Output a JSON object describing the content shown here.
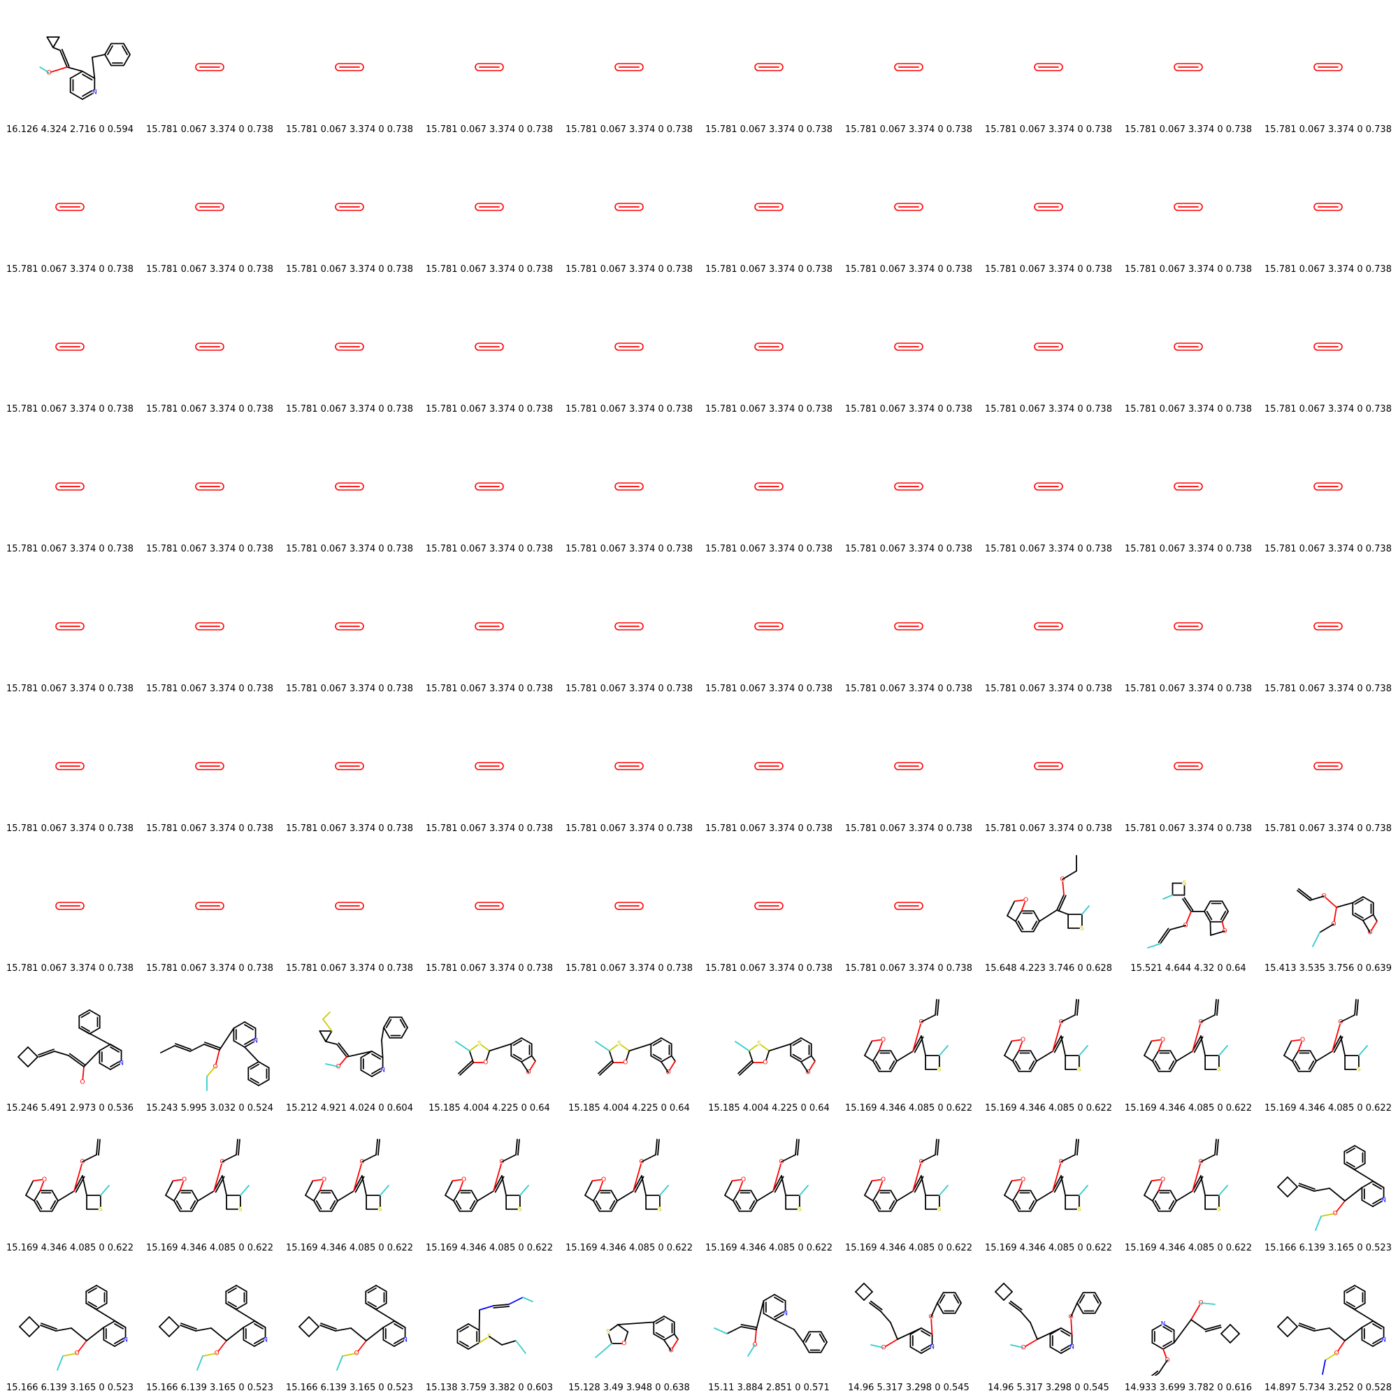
{
  "colors": {
    "bond": "#000000",
    "oxygen": "#ff0000",
    "nitrogen": "#0000ff",
    "sulfur": "#cccc00",
    "fluorine": "#33cccc"
  },
  "cells": [
    {
      "label": "16.126 4.324 2.716 0 0.594",
      "structure": "cyclopropyl-vinyl-pyridine"
    },
    {
      "label": "15.781 0.067 3.374 0 0.738",
      "structure": "o2"
    },
    {
      "label": "15.781 0.067 3.374 0 0.738",
      "structure": "o2"
    },
    {
      "label": "15.781 0.067 3.374 0 0.738",
      "structure": "o2"
    },
    {
      "label": "15.781 0.067 3.374 0 0.738",
      "structure": "o2"
    },
    {
      "label": "15.781 0.067 3.374 0 0.738",
      "structure": "o2"
    },
    {
      "label": "15.781 0.067 3.374 0 0.738",
      "structure": "o2"
    },
    {
      "label": "15.781 0.067 3.374 0 0.738",
      "structure": "o2"
    },
    {
      "label": "15.781 0.067 3.374 0 0.738",
      "structure": "o2"
    },
    {
      "label": "15.781 0.067 3.374 0 0.738",
      "structure": "o2"
    },
    {
      "label": "15.781 0.067 3.374 0 0.738",
      "structure": "o2"
    },
    {
      "label": "15.781 0.067 3.374 0 0.738",
      "structure": "o2"
    },
    {
      "label": "15.781 0.067 3.374 0 0.738",
      "structure": "o2"
    },
    {
      "label": "15.781 0.067 3.374 0 0.738",
      "structure": "o2"
    },
    {
      "label": "15.781 0.067 3.374 0 0.738",
      "structure": "o2"
    },
    {
      "label": "15.781 0.067 3.374 0 0.738",
      "structure": "o2"
    },
    {
      "label": "15.781 0.067 3.374 0 0.738",
      "structure": "o2"
    },
    {
      "label": "15.781 0.067 3.374 0 0.738",
      "structure": "o2"
    },
    {
      "label": "15.781 0.067 3.374 0 0.738",
      "structure": "o2"
    },
    {
      "label": "15.781 0.067 3.374 0 0.738",
      "structure": "o2"
    },
    {
      "label": "15.781 0.067 3.374 0 0.738",
      "structure": "o2"
    },
    {
      "label": "15.781 0.067 3.374 0 0.738",
      "structure": "o2"
    },
    {
      "label": "15.781 0.067 3.374 0 0.738",
      "structure": "o2"
    },
    {
      "label": "15.781 0.067 3.374 0 0.738",
      "structure": "o2"
    },
    {
      "label": "15.781 0.067 3.374 0 0.738",
      "structure": "o2"
    },
    {
      "label": "15.781 0.067 3.374 0 0.738",
      "structure": "o2"
    },
    {
      "label": "15.781 0.067 3.374 0 0.738",
      "structure": "o2"
    },
    {
      "label": "15.781 0.067 3.374 0 0.738",
      "structure": "o2"
    },
    {
      "label": "15.781 0.067 3.374 0 0.738",
      "structure": "o2"
    },
    {
      "label": "15.781 0.067 3.374 0 0.738",
      "structure": "o2"
    },
    {
      "label": "15.781 0.067 3.374 0 0.738",
      "structure": "o2"
    },
    {
      "label": "15.781 0.067 3.374 0 0.738",
      "structure": "o2"
    },
    {
      "label": "15.781 0.067 3.374 0 0.738",
      "structure": "o2"
    },
    {
      "label": "15.781 0.067 3.374 0 0.738",
      "structure": "o2"
    },
    {
      "label": "15.781 0.067 3.374 0 0.738",
      "structure": "o2"
    },
    {
      "label": "15.781 0.067 3.374 0 0.738",
      "structure": "o2"
    },
    {
      "label": "15.781 0.067 3.374 0 0.738",
      "structure": "o2"
    },
    {
      "label": "15.781 0.067 3.374 0 0.738",
      "structure": "o2"
    },
    {
      "label": "15.781 0.067 3.374 0 0.738",
      "structure": "o2"
    },
    {
      "label": "15.781 0.067 3.374 0 0.738",
      "structure": "o2"
    },
    {
      "label": "15.781 0.067 3.374 0 0.738",
      "structure": "o2"
    },
    {
      "label": "15.781 0.067 3.374 0 0.738",
      "structure": "o2"
    },
    {
      "label": "15.781 0.067 3.374 0 0.738",
      "structure": "o2"
    },
    {
      "label": "15.781 0.067 3.374 0 0.738",
      "structure": "o2"
    },
    {
      "label": "15.781 0.067 3.374 0 0.738",
      "structure": "o2"
    },
    {
      "label": "15.781 0.067 3.374 0 0.738",
      "structure": "o2"
    },
    {
      "label": "15.781 0.067 3.374 0 0.738",
      "structure": "o2"
    },
    {
      "label": "15.781 0.067 3.374 0 0.738",
      "structure": "o2"
    },
    {
      "label": "15.781 0.067 3.374 0 0.738",
      "structure": "o2"
    },
    {
      "label": "15.781 0.067 3.374 0 0.738",
      "structure": "o2"
    },
    {
      "label": "15.781 0.067 3.374 0 0.738",
      "structure": "o2"
    },
    {
      "label": "15.781 0.067 3.374 0 0.738",
      "structure": "o2"
    },
    {
      "label": "15.781 0.067 3.374 0 0.738",
      "structure": "o2"
    },
    {
      "label": "15.781 0.067 3.374 0 0.738",
      "structure": "o2"
    },
    {
      "label": "15.781 0.067 3.374 0 0.738",
      "structure": "o2"
    },
    {
      "label": "15.781 0.067 3.374 0 0.738",
      "structure": "o2"
    },
    {
      "label": "15.781 0.067 3.374 0 0.738",
      "structure": "o2"
    },
    {
      "label": "15.781 0.067 3.374 0 0.738",
      "structure": "o2"
    },
    {
      "label": "15.781 0.067 3.374 0 0.738",
      "structure": "o2"
    },
    {
      "label": "15.781 0.067 3.374 0 0.738",
      "structure": "o2"
    },
    {
      "label": "15.781 0.067 3.374 0 0.738",
      "structure": "o2"
    },
    {
      "label": "15.781 0.067 3.374 0 0.738",
      "structure": "o2"
    },
    {
      "label": "15.781 0.067 3.374 0 0.738",
      "structure": "o2"
    },
    {
      "label": "15.781 0.067 3.374 0 0.738",
      "structure": "o2"
    },
    {
      "label": "15.781 0.067 3.374 0 0.738",
      "structure": "o2"
    },
    {
      "label": "15.781 0.067 3.374 0 0.738",
      "structure": "o2"
    },
    {
      "label": "15.781 0.067 3.374 0 0.738",
      "structure": "o2"
    },
    {
      "label": "15.648 4.223 3.746 0 0.628",
      "structure": "benzofuran-thietane-ethoxy"
    },
    {
      "label": "15.521 4.644 4.32 0 0.64",
      "structure": "benzofuran-thietane-fluorovinyloxy"
    },
    {
      "label": "15.413 3.535 3.756 0 0.639",
      "structure": "benzofuran-acetal"
    },
    {
      "label": "15.246 5.491 2.973 0 0.536",
      "structure": "cyclobutylidene-phenylpyridine"
    },
    {
      "label": "15.243 5.995 3.032 0 0.524",
      "structure": "hexadienyl-phenylpyridine"
    },
    {
      "label": "15.212 4.921 4.024 0 0.604",
      "structure": "thiocyclopropyl-benzylpyridine"
    },
    {
      "label": "15.185 4.004 4.225 0 0.64",
      "structure": "benzofuran-oxathiolane"
    },
    {
      "label": "15.185 4.004 4.225 0 0.64",
      "structure": "benzofuran-oxathiolane"
    },
    {
      "label": "15.185 4.004 4.225 0 0.64",
      "structure": "benzofuran-oxathiolane"
    },
    {
      "label": "15.169 4.346 4.085 0 0.622",
      "structure": "benzofuran-thietane-vinyloxy"
    },
    {
      "label": "15.169 4.346 4.085 0 0.622",
      "structure": "benzofuran-thietane-vinyloxy"
    },
    {
      "label": "15.169 4.346 4.085 0 0.622",
      "structure": "benzofuran-thietane-vinyloxy"
    },
    {
      "label": "15.169 4.346 4.085 0 0.622",
      "structure": "benzofuran-thietane-vinyloxy"
    },
    {
      "label": "15.169 4.346 4.085 0 0.622",
      "structure": "benzofuran-thietane-vinyloxy"
    },
    {
      "label": "15.169 4.346 4.085 0 0.622",
      "structure": "benzofuran-thietane-vinyloxy"
    },
    {
      "label": "15.169 4.346 4.085 0 0.622",
      "structure": "benzofuran-thietane-vinyloxy"
    },
    {
      "label": "15.169 4.346 4.085 0 0.622",
      "structure": "benzofuran-thietane-vinyloxy"
    },
    {
      "label": "15.169 4.346 4.085 0 0.622",
      "structure": "benzofuran-thietane-vinyloxy"
    },
    {
      "label": "15.169 4.346 4.085 0 0.622",
      "structure": "benzofuran-thietane-vinyloxy"
    },
    {
      "label": "15.169 4.346 4.085 0 0.622",
      "structure": "benzofuran-thietane-vinyloxy"
    },
    {
      "label": "15.169 4.346 4.085 0 0.622",
      "structure": "benzofuran-thietane-vinyloxy"
    },
    {
      "label": "15.169 4.346 4.085 0 0.622",
      "structure": "benzofuran-thietane-vinyloxy"
    },
    {
      "label": "15.166 6.139 3.165 0 0.523",
      "structure": "cyclobutylidene-phenylpyridine-oxysulfur"
    },
    {
      "label": "15.166 6.139 3.165 0 0.523",
      "structure": "cyclobutylidene-phenylpyridine-oxysulfur"
    },
    {
      "label": "15.166 6.139 3.165 0 0.523",
      "structure": "cyclobutylidene-phenylpyridine-oxysulfur"
    },
    {
      "label": "15.166 6.139 3.165 0 0.523",
      "structure": "cyclobutylidene-phenylpyridine-oxysulfur"
    },
    {
      "label": "15.138 3.759 3.382 0 0.603",
      "structure": "azobenzene-thioether"
    },
    {
      "label": "15.128 3.49 3.948 0 0.638",
      "structure": "benzofuran-oxathiolane-fluoro"
    },
    {
      "label": "15.11 3.884 2.851 0 0.571",
      "structure": "benzylpyridine-fluoroalkene"
    },
    {
      "label": "14.96 5.317 3.298 0 0.545",
      "structure": "cyclobutylidene-phenoxypyridine"
    },
    {
      "label": "14.96 5.317 3.298 0 0.545",
      "structure": "cyclobutylidene-phenoxypyridine"
    },
    {
      "label": "14.933 3.699 3.782 0 0.616",
      "structure": "allyloxypyridine-cyclobutyl"
    },
    {
      "label": "14.897 5.734 3.252 0 0.528",
      "structure": "cyclobutylidene-phenylpyridine-thionitrile"
    }
  ]
}
